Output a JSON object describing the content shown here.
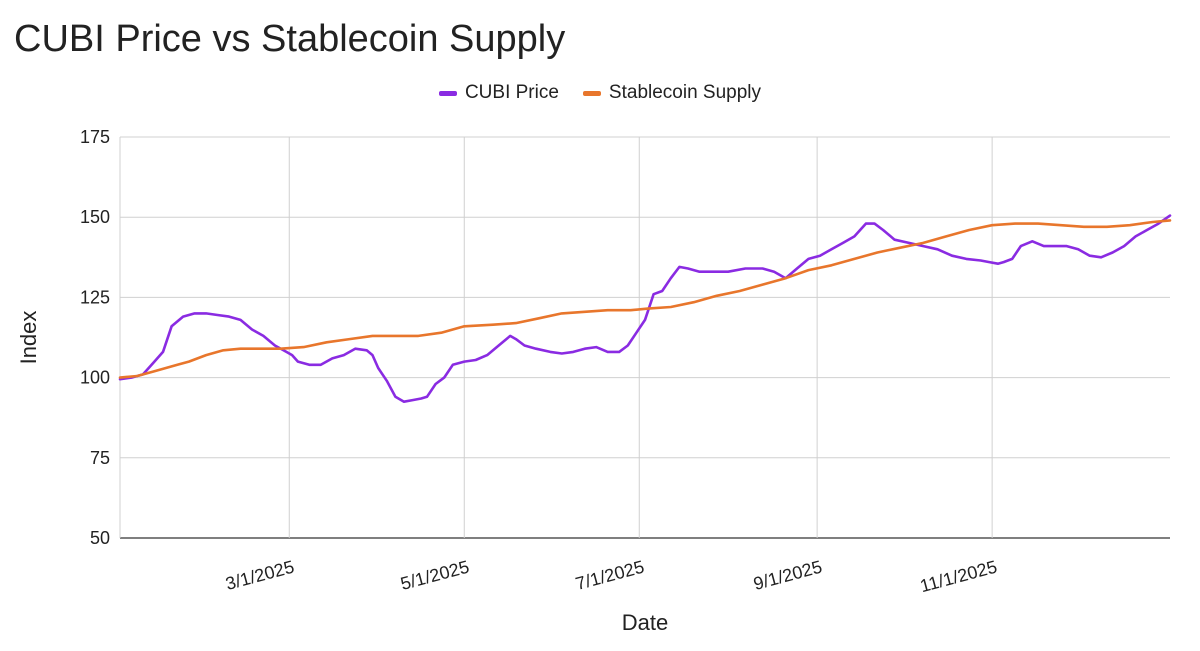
{
  "chart_data": {
    "type": "line",
    "title": "CUBI Price vs Stablecoin Supply",
    "xlabel": "Date",
    "ylabel": "Index",
    "ylim": [
      50,
      175
    ],
    "yticks": [
      50,
      75,
      100,
      125,
      150,
      175
    ],
    "grid": true,
    "legend_position": "top-center",
    "x_start": "1/1/2025",
    "x_end": "12/20/2025",
    "xticks": [
      {
        "label": "3/1/2025",
        "day": 59
      },
      {
        "label": "5/1/2025",
        "day": 120
      },
      {
        "label": "7/1/2025",
        "day": 181
      },
      {
        "label": "9/1/2025",
        "day": 243
      },
      {
        "label": "11/1/2025",
        "day": 304
      }
    ],
    "series": [
      {
        "name": "CUBI Price",
        "color": "#8a2be2",
        "points": [
          [
            0,
            99.5
          ],
          [
            4,
            100
          ],
          [
            8,
            101
          ],
          [
            12,
            105
          ],
          [
            15,
            108
          ],
          [
            18,
            116
          ],
          [
            22,
            119
          ],
          [
            26,
            120
          ],
          [
            30,
            120
          ],
          [
            34,
            119.5
          ],
          [
            38,
            119
          ],
          [
            42,
            118
          ],
          [
            46,
            115
          ],
          [
            50,
            113
          ],
          [
            54,
            110
          ],
          [
            58,
            108
          ],
          [
            60,
            107
          ],
          [
            62,
            105
          ],
          [
            66,
            104
          ],
          [
            70,
            104
          ],
          [
            74,
            106
          ],
          [
            78,
            107
          ],
          [
            82,
            109
          ],
          [
            86,
            108.5
          ],
          [
            88,
            107
          ],
          [
            90,
            103
          ],
          [
            93,
            99
          ],
          [
            96,
            94
          ],
          [
            99,
            92.5
          ],
          [
            102,
            93
          ],
          [
            105,
            93.5
          ],
          [
            107,
            94
          ],
          [
            110,
            98
          ],
          [
            113,
            100
          ],
          [
            116,
            104
          ],
          [
            120,
            105
          ],
          [
            124,
            105.5
          ],
          [
            128,
            107
          ],
          [
            132,
            110
          ],
          [
            136,
            113
          ],
          [
            138,
            112
          ],
          [
            141,
            110
          ],
          [
            145,
            109
          ],
          [
            150,
            108
          ],
          [
            154,
            107.5
          ],
          [
            158,
            108
          ],
          [
            162,
            109
          ],
          [
            166,
            109.5
          ],
          [
            170,
            108
          ],
          [
            174,
            108
          ],
          [
            177,
            110
          ],
          [
            180,
            114
          ],
          [
            183,
            118
          ],
          [
            186,
            126
          ],
          [
            189,
            127
          ],
          [
            192,
            131
          ],
          [
            195,
            134.5
          ],
          [
            198,
            134
          ],
          [
            202,
            133
          ],
          [
            207,
            133
          ],
          [
            212,
            133
          ],
          [
            218,
            134
          ],
          [
            224,
            134
          ],
          [
            228,
            133
          ],
          [
            232,
            131
          ],
          [
            236,
            134
          ],
          [
            240,
            137
          ],
          [
            244,
            138
          ],
          [
            248,
            140
          ],
          [
            252,
            142
          ],
          [
            256,
            144
          ],
          [
            260,
            148
          ],
          [
            263,
            148
          ],
          [
            266,
            146
          ],
          [
            270,
            143
          ],
          [
            275,
            142
          ],
          [
            280,
            141
          ],
          [
            285,
            140
          ],
          [
            290,
            138
          ],
          [
            295,
            137
          ],
          [
            300,
            136.5
          ],
          [
            303,
            136
          ],
          [
            306,
            135.5
          ],
          [
            308,
            136
          ],
          [
            311,
            137
          ],
          [
            314,
            141
          ],
          [
            318,
            142.5
          ],
          [
            322,
            141
          ],
          [
            326,
            141
          ],
          [
            330,
            141
          ],
          [
            334,
            140
          ],
          [
            338,
            138
          ],
          [
            342,
            137.5
          ],
          [
            346,
            139
          ],
          [
            350,
            141
          ],
          [
            354,
            144
          ],
          [
            358,
            146
          ],
          [
            362,
            148
          ],
          [
            366,
            150.5
          ]
        ]
      },
      {
        "name": "Stablecoin Supply",
        "color": "#e8762c",
        "points": [
          [
            0,
            100
          ],
          [
            6,
            100.5
          ],
          [
            12,
            102
          ],
          [
            16,
            103
          ],
          [
            20,
            104
          ],
          [
            24,
            105
          ],
          [
            30,
            107
          ],
          [
            36,
            108.5
          ],
          [
            42,
            109
          ],
          [
            48,
            109
          ],
          [
            56,
            109
          ],
          [
            64,
            109.5
          ],
          [
            72,
            111
          ],
          [
            80,
            112
          ],
          [
            88,
            113
          ],
          [
            96,
            113
          ],
          [
            104,
            113
          ],
          [
            112,
            114
          ],
          [
            120,
            116
          ],
          [
            130,
            116.5
          ],
          [
            138,
            117
          ],
          [
            146,
            118.5
          ],
          [
            154,
            120
          ],
          [
            162,
            120.5
          ],
          [
            170,
            121
          ],
          [
            178,
            121
          ],
          [
            184,
            121.5
          ],
          [
            192,
            122
          ],
          [
            200,
            123.5
          ],
          [
            208,
            125.5
          ],
          [
            216,
            127
          ],
          [
            224,
            129
          ],
          [
            232,
            131
          ],
          [
            240,
            133.5
          ],
          [
            248,
            135
          ],
          [
            256,
            137
          ],
          [
            264,
            139
          ],
          [
            272,
            140.5
          ],
          [
            280,
            142
          ],
          [
            288,
            144
          ],
          [
            296,
            146
          ],
          [
            304,
            147.5
          ],
          [
            312,
            148
          ],
          [
            320,
            148
          ],
          [
            328,
            147.5
          ],
          [
            336,
            147
          ],
          [
            344,
            147
          ],
          [
            352,
            147.5
          ],
          [
            360,
            148.5
          ],
          [
            366,
            149
          ]
        ]
      }
    ]
  }
}
